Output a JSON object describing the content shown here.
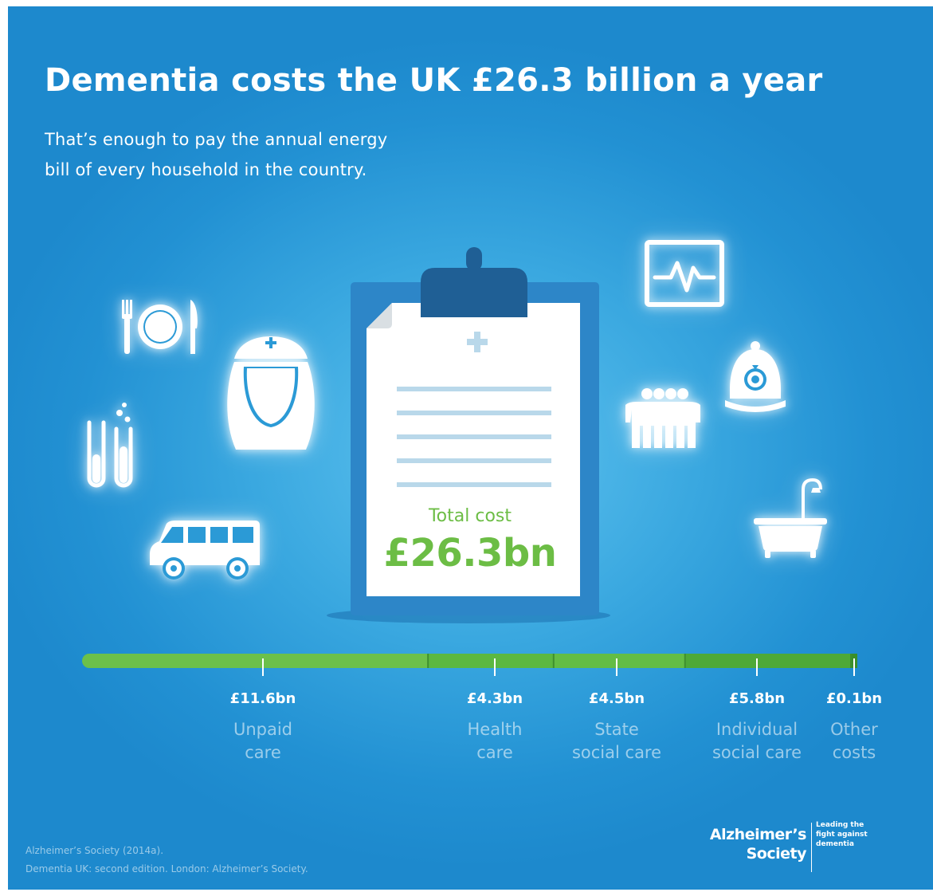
{
  "title": "Dementia costs the UK £26.3 billion a year",
  "subtitle": {
    "line1": "That’s enough to pay the annual energy",
    "line2": "bill of every household in the country."
  },
  "total": {
    "label": "Total cost",
    "value": "£26.3bn"
  },
  "breakdown": [
    {
      "amount": "£11.6bn",
      "label_line1": "Unpaid",
      "label_line2": "care",
      "value_bn": 11.6
    },
    {
      "amount": "£4.3bn",
      "label_line1": "Health",
      "label_line2": "care",
      "value_bn": 4.3
    },
    {
      "amount": "£4.5bn",
      "label_line1": "State",
      "label_line2": "social care",
      "value_bn": 4.5
    },
    {
      "amount": "£5.8bn",
      "label_line1": "Individual",
      "label_line2": "social care",
      "value_bn": 5.8
    },
    {
      "amount": "£0.1bn",
      "label_line1": "Other",
      "label_line2": "costs",
      "value_bn": 0.1
    }
  ],
  "source": {
    "line1": "Alzheimer’s Society (2014a).",
    "line2": "Dementia UK: second edition. London: Alzheimer’s Society."
  },
  "logo": {
    "name_line1": "Alzheimer’s",
    "name_line2": "Society",
    "tagline_line1": "Leading the",
    "tagline_line2": "fight against",
    "tagline_line3": "dementia"
  },
  "icons": [
    "cutlery-plate-icon",
    "nurse-icon",
    "test-tubes-icon",
    "minibus-icon",
    "heart-monitor-icon",
    "group-of-people-icon",
    "police-helmet-icon",
    "bathtub-icon",
    "clipboard-icon"
  ],
  "colors": {
    "background": "#2291d3",
    "accent_green": "#6cbd45",
    "clipboard_blue": "#2b7dc0",
    "segments": [
      "#6cc04a",
      "#5cb840",
      "#63bd45",
      "#4ea937",
      "#3a8f2a"
    ]
  }
}
